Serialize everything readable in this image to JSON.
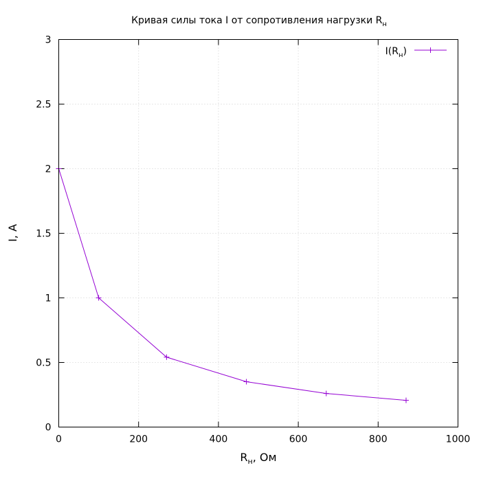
{
  "chart_data": {
    "type": "line",
    "title": {
      "text": "Кривая силы тока I от сопротивления нагрузки R",
      "sub": "н"
    },
    "xlabel": {
      "main": "R",
      "sub": "н",
      "suffix": ", Ом"
    },
    "ylabel": "I, A",
    "xlim": [
      0,
      1000
    ],
    "ylim": [
      0,
      3
    ],
    "xticks": [
      0,
      200,
      400,
      600,
      800,
      1000
    ],
    "yticks": [
      0,
      0.5,
      1,
      1.5,
      2,
      2.5,
      3
    ],
    "xtick_labels": [
      "0",
      "200",
      "400",
      "600",
      "800",
      "1000"
    ],
    "ytick_labels": [
      "0",
      "0.5",
      "1",
      "1.5",
      "2",
      "2.5",
      "3"
    ],
    "grid": true,
    "legend": "top-right",
    "series": [
      {
        "name": {
          "main": "I(R",
          "sub": "н",
          "close": ")"
        },
        "color": "#9400d3",
        "marker": "plus",
        "x": [
          0,
          100,
          270,
          470,
          670,
          870
        ],
        "y": [
          2.0,
          1.0,
          0.541,
          0.351,
          0.26,
          0.207
        ]
      }
    ]
  }
}
